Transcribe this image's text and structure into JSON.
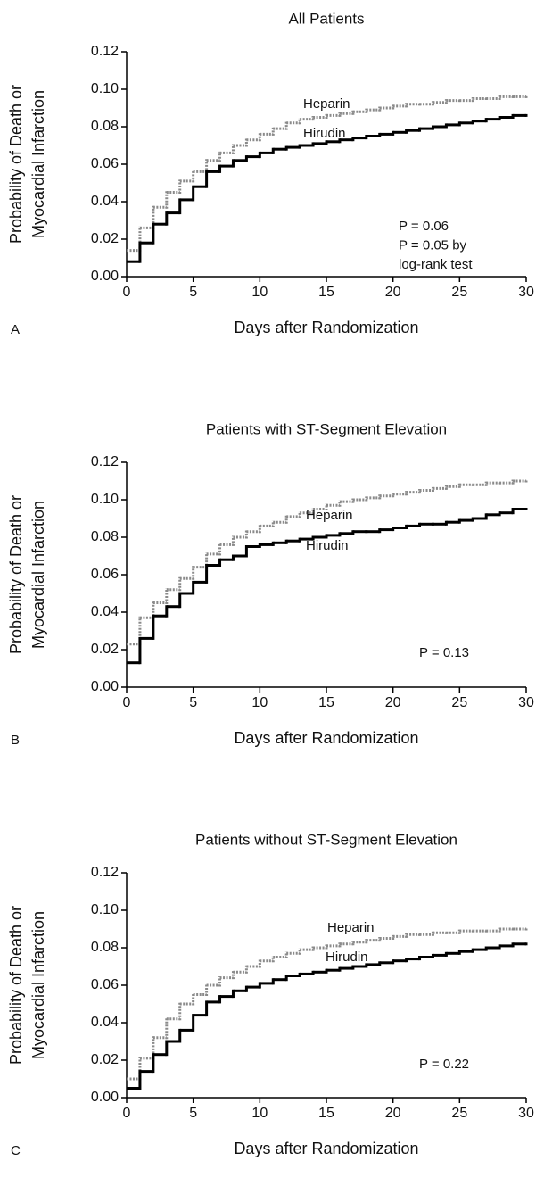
{
  "chart_data": [
    {
      "type": "step",
      "title": "All Patients",
      "panel": "A",
      "xlabel": "Days after Randomization",
      "ylabel": [
        "Probability of Death or",
        "Myocardial Infarction"
      ],
      "annotations": [
        "P = 0.06",
        "P = 0.05 by",
        "log-rank test"
      ],
      "xlim": [
        0,
        30
      ],
      "xticks": [
        0,
        5,
        10,
        15,
        20,
        25,
        30
      ],
      "ylim": [
        0,
        0.12
      ],
      "yticks": [
        {
          "value": 0,
          "label": "0.00"
        },
        {
          "value": 0.02,
          "label": "0.02"
        },
        {
          "value": 0.04,
          "label": "0.04"
        },
        {
          "value": 0.06,
          "label": "0.06"
        },
        {
          "value": 0.08,
          "label": "0.08"
        },
        {
          "value": 0.1,
          "label": "0.10"
        },
        {
          "value": 0.12,
          "label": "0.12"
        }
      ],
      "x": [
        0,
        1,
        2,
        3,
        4,
        5,
        6,
        7,
        8,
        9,
        10,
        11,
        12,
        13,
        14,
        15,
        16,
        17,
        18,
        19,
        20,
        21,
        22,
        23,
        24,
        25,
        26,
        27,
        28,
        29,
        30
      ],
      "series": [
        {
          "name": "Heparin",
          "color": "#8a8a8a",
          "values": [
            0.014,
            0.026,
            0.037,
            0.045,
            0.051,
            0.056,
            0.062,
            0.066,
            0.07,
            0.073,
            0.076,
            0.079,
            0.082,
            0.084,
            0.085,
            0.086,
            0.087,
            0.088,
            0.089,
            0.09,
            0.091,
            0.092,
            0.092,
            0.093,
            0.094,
            0.094,
            0.095,
            0.095,
            0.096,
            0.096,
            0.096
          ]
        },
        {
          "name": "Hirudin",
          "color": "#000000",
          "values": [
            0.008,
            0.018,
            0.028,
            0.034,
            0.041,
            0.048,
            0.056,
            0.059,
            0.062,
            0.064,
            0.066,
            0.068,
            0.069,
            0.07,
            0.071,
            0.072,
            0.073,
            0.074,
            0.075,
            0.076,
            0.077,
            0.078,
            0.079,
            0.08,
            0.081,
            0.082,
            0.083,
            0.084,
            0.085,
            0.086,
            0.086
          ]
        }
      ]
    },
    {
      "type": "step",
      "title": "Patients with ST-Segment Elevation",
      "panel": "B",
      "xlabel": "Days after Randomization",
      "ylabel": [
        "Probability of Death or",
        "Myocardial Infarction"
      ],
      "annotations": [
        "P = 0.13"
      ],
      "xlim": [
        0,
        30
      ],
      "xticks": [
        0,
        5,
        10,
        15,
        20,
        25,
        30
      ],
      "ylim": [
        0,
        0.12
      ],
      "yticks": [
        {
          "value": 0,
          "label": "0.00"
        },
        {
          "value": 0.02,
          "label": "0.02"
        },
        {
          "value": 0.04,
          "label": "0.04"
        },
        {
          "value": 0.06,
          "label": "0.06"
        },
        {
          "value": 0.08,
          "label": "0.08"
        },
        {
          "value": 0.1,
          "label": "0.10"
        },
        {
          "value": 0.12,
          "label": "0.12"
        }
      ],
      "x": [
        0,
        1,
        2,
        3,
        4,
        5,
        6,
        7,
        8,
        9,
        10,
        11,
        12,
        13,
        14,
        15,
        16,
        17,
        18,
        19,
        20,
        21,
        22,
        23,
        24,
        25,
        26,
        27,
        28,
        29,
        30
      ],
      "series": [
        {
          "name": "Heparin",
          "color": "#8a8a8a",
          "values": [
            0.023,
            0.037,
            0.045,
            0.052,
            0.058,
            0.064,
            0.071,
            0.076,
            0.08,
            0.083,
            0.086,
            0.088,
            0.091,
            0.093,
            0.095,
            0.097,
            0.099,
            0.1,
            0.101,
            0.102,
            0.103,
            0.104,
            0.105,
            0.106,
            0.107,
            0.108,
            0.108,
            0.109,
            0.109,
            0.11,
            0.11
          ]
        },
        {
          "name": "Hirudin",
          "color": "#000000",
          "values": [
            0.013,
            0.026,
            0.038,
            0.043,
            0.05,
            0.056,
            0.065,
            0.068,
            0.07,
            0.075,
            0.076,
            0.077,
            0.078,
            0.079,
            0.08,
            0.081,
            0.082,
            0.083,
            0.083,
            0.084,
            0.085,
            0.086,
            0.087,
            0.087,
            0.088,
            0.089,
            0.09,
            0.092,
            0.093,
            0.095,
            0.095
          ]
        }
      ]
    },
    {
      "type": "step",
      "title": "Patients without ST-Segment Elevation",
      "panel": "C",
      "xlabel": "Days after Randomization",
      "ylabel": [
        "Probability of Death or",
        "Myocardial Infarction"
      ],
      "annotations": [
        "P = 0.22"
      ],
      "xlim": [
        0,
        30
      ],
      "xticks": [
        0,
        5,
        10,
        15,
        20,
        25,
        30
      ],
      "ylim": [
        0,
        0.12
      ],
      "yticks": [
        {
          "value": 0,
          "label": "0.00"
        },
        {
          "value": 0.02,
          "label": "0.02"
        },
        {
          "value": 0.04,
          "label": "0.04"
        },
        {
          "value": 0.06,
          "label": "0.06"
        },
        {
          "value": 0.08,
          "label": "0.08"
        },
        {
          "value": 0.1,
          "label": "0.10"
        },
        {
          "value": 0.12,
          "label": "0.12"
        }
      ],
      "x": [
        0,
        1,
        2,
        3,
        4,
        5,
        6,
        7,
        8,
        9,
        10,
        11,
        12,
        13,
        14,
        15,
        16,
        17,
        18,
        19,
        20,
        21,
        22,
        23,
        24,
        25,
        26,
        27,
        28,
        29,
        30
      ],
      "series": [
        {
          "name": "Heparin",
          "color": "#8a8a8a",
          "values": [
            0.01,
            0.021,
            0.032,
            0.042,
            0.05,
            0.055,
            0.06,
            0.064,
            0.067,
            0.07,
            0.073,
            0.075,
            0.077,
            0.079,
            0.08,
            0.081,
            0.082,
            0.083,
            0.084,
            0.085,
            0.086,
            0.087,
            0.087,
            0.088,
            0.088,
            0.089,
            0.089,
            0.089,
            0.09,
            0.09,
            0.09
          ]
        },
        {
          "name": "Hirudin",
          "color": "#000000",
          "values": [
            0.005,
            0.014,
            0.023,
            0.03,
            0.036,
            0.044,
            0.051,
            0.054,
            0.057,
            0.059,
            0.061,
            0.063,
            0.065,
            0.066,
            0.067,
            0.068,
            0.069,
            0.07,
            0.071,
            0.072,
            0.073,
            0.074,
            0.075,
            0.076,
            0.077,
            0.078,
            0.079,
            0.08,
            0.081,
            0.082,
            0.082
          ]
        }
      ]
    }
  ]
}
